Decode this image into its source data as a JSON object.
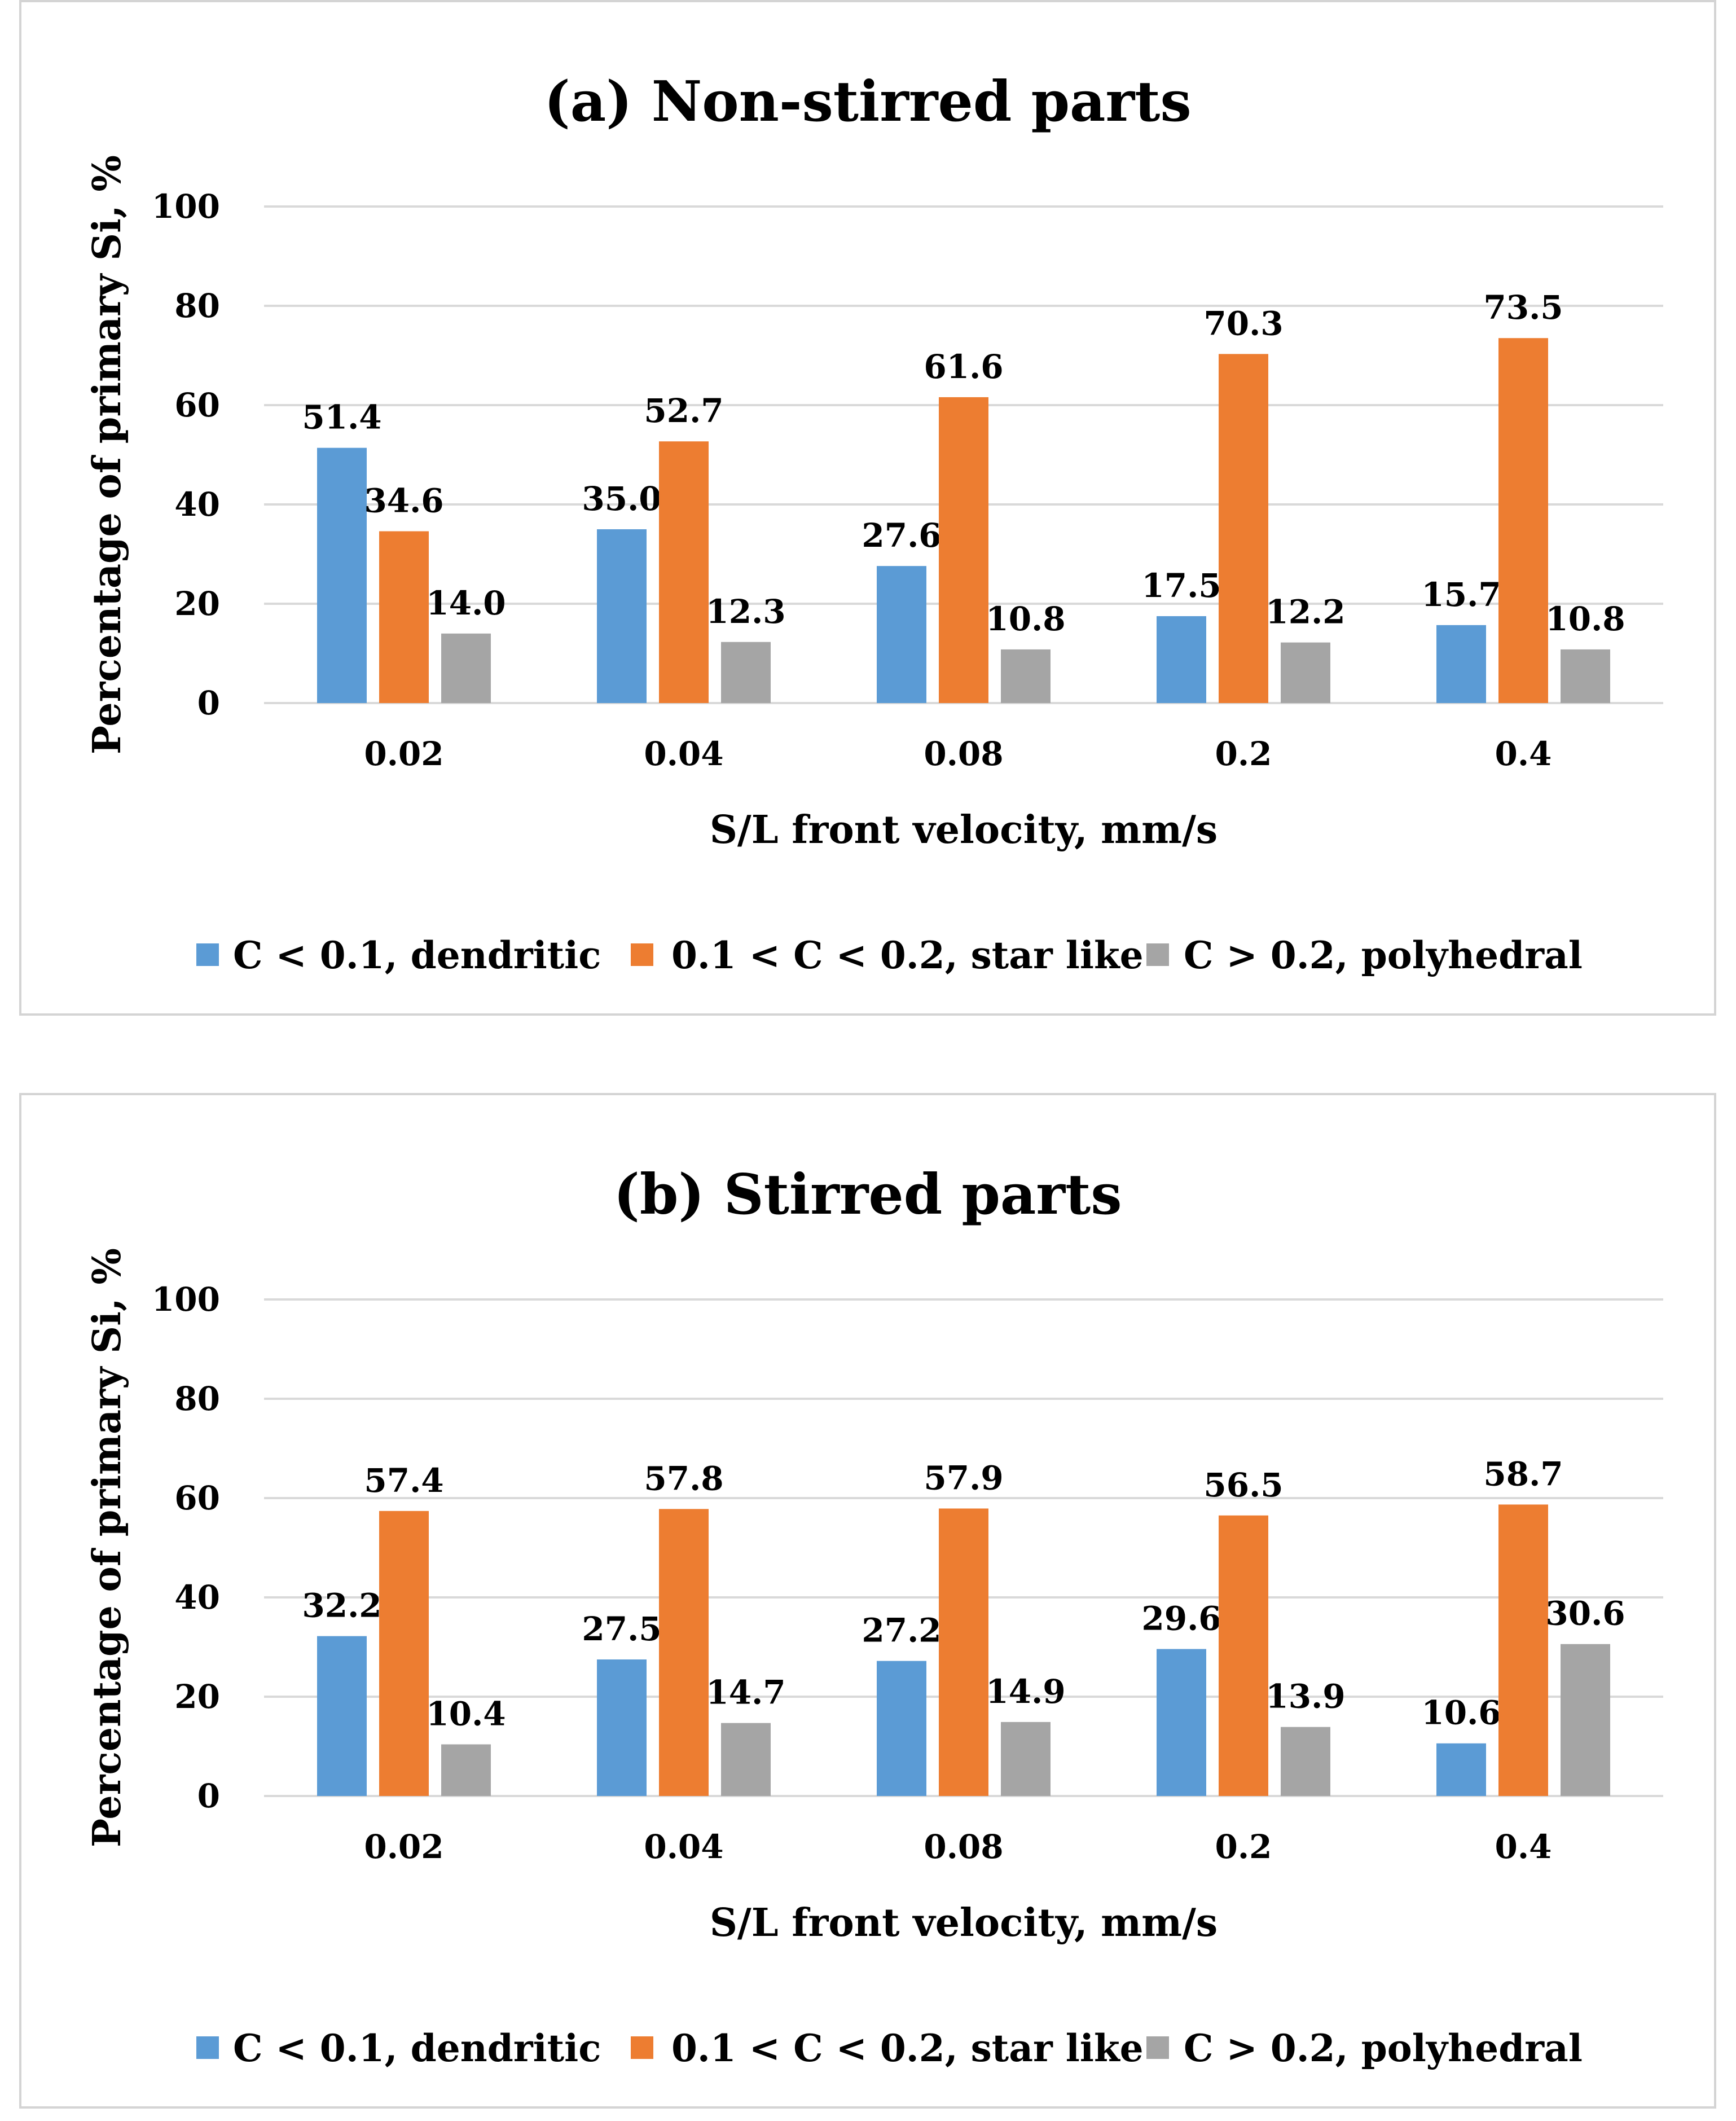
{
  "chart_data": [
    {
      "type": "bar",
      "title": "(a) Non-stirred parts",
      "xlabel": "S/L front velocity, mm/s",
      "ylabel": "Percentage of primary Si, %",
      "categories": [
        "0.02",
        "0.04",
        "0.08",
        "0.2",
        "0.4"
      ],
      "ylim": [
        0,
        100
      ],
      "yticks": [
        "0",
        "20",
        "40",
        "60",
        "80",
        "100"
      ],
      "grid": true,
      "legend_position": "bottom",
      "series": [
        {
          "name": "C < 0.1, dendritic",
          "color": "#5b9bd5",
          "values": [
            51.4,
            35.0,
            27.6,
            17.5,
            15.7
          ],
          "labels": [
            "51.4",
            "35.0",
            "27.6",
            "17.5",
            "15.7"
          ]
        },
        {
          "name": "0.1 < C < 0.2, star like",
          "color": "#ed7d31",
          "values": [
            34.6,
            52.7,
            61.6,
            70.3,
            73.5
          ],
          "labels": [
            "34.6",
            "52.7",
            "61.6",
            "70.3",
            "73.5"
          ]
        },
        {
          "name": "C > 0.2, polyhedral",
          "color": "#a5a5a5",
          "values": [
            14.0,
            12.3,
            10.8,
            12.2,
            10.8
          ],
          "labels": [
            "14.0",
            "12.3",
            "10.8",
            "12.2",
            "10.8"
          ]
        }
      ]
    },
    {
      "type": "bar",
      "title": "(b) Stirred parts",
      "xlabel": "S/L front velocity, mm/s",
      "ylabel": "Percentage of primary Si, %",
      "categories": [
        "0.02",
        "0.04",
        "0.08",
        "0.2",
        "0.4"
      ],
      "ylim": [
        0,
        100
      ],
      "yticks": [
        "0",
        "20",
        "40",
        "60",
        "80",
        "100"
      ],
      "grid": true,
      "legend_position": "bottom",
      "series": [
        {
          "name": "C < 0.1, dendritic",
          "color": "#5b9bd5",
          "values": [
            32.2,
            27.5,
            27.2,
            29.6,
            10.6
          ],
          "labels": [
            "32.2",
            "27.5",
            "27.2",
            "29.6",
            "10.6"
          ]
        },
        {
          "name": "0.1 < C < 0.2,  star like",
          "color": "#ed7d31",
          "values": [
            57.4,
            57.8,
            57.9,
            56.5,
            58.7
          ],
          "labels": [
            "57.4",
            "57.8",
            "57.9",
            "56.5",
            "58.7"
          ]
        },
        {
          "name": "C > 0.2, polyhedral",
          "color": "#a5a5a5",
          "values": [
            10.4,
            14.7,
            14.9,
            13.9,
            30.6
          ],
          "labels": [
            "10.4",
            "14.7",
            "14.9",
            "13.9",
            "30.6"
          ]
        }
      ]
    }
  ]
}
